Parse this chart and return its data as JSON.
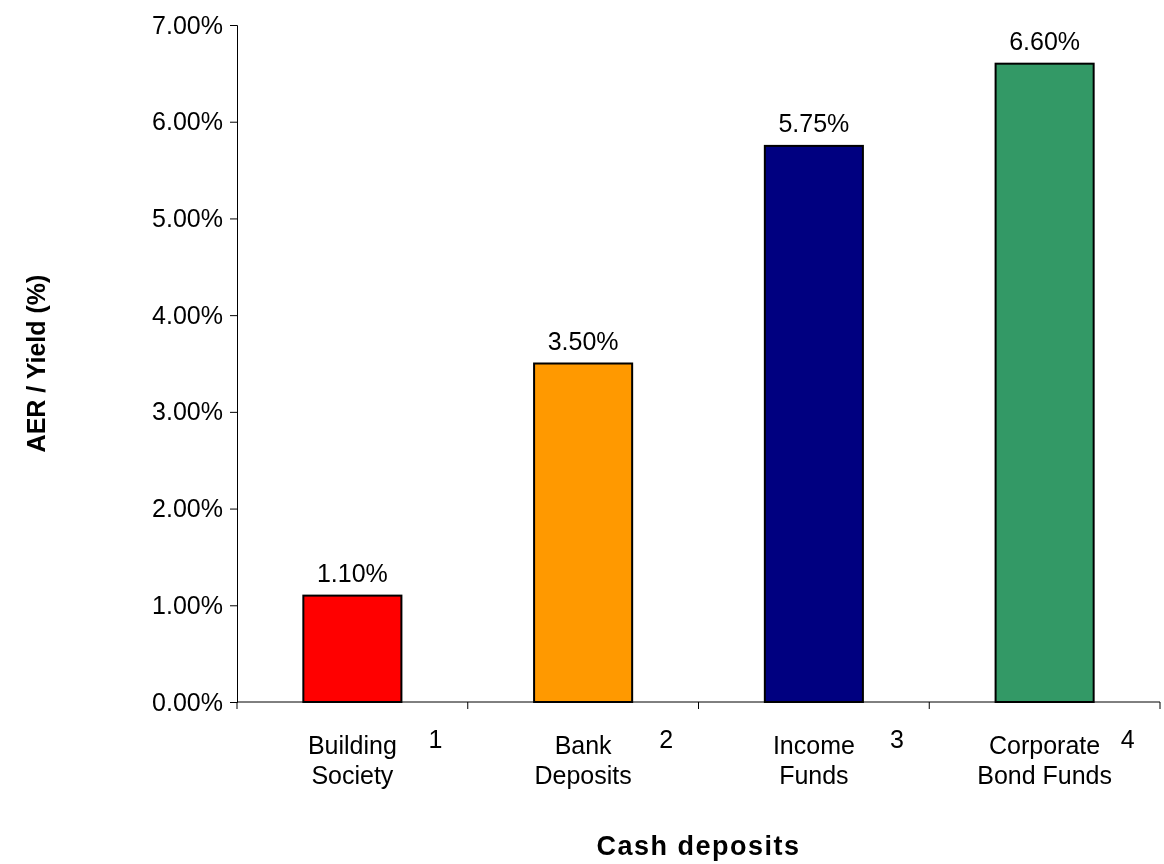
{
  "chart_data": {
    "type": "bar",
    "xlabel": "Cash deposits",
    "ylabel": "AER / Yield (%)",
    "categories": [
      "Building Society",
      "Bank Deposits",
      "Income Funds",
      "Corporate Bond Funds"
    ],
    "annotations": [
      "1",
      "2",
      "3",
      "4"
    ],
    "values": [
      1.1,
      3.5,
      5.75,
      6.6
    ],
    "colors": [
      "#ff0000",
      "#ff9900",
      "#000080",
      "#339966"
    ],
    "value_labels": [
      "1.10%",
      "3.50%",
      "5.75%",
      "6.60%"
    ],
    "ylim": [
      0,
      7
    ],
    "yticks": [
      {
        "value": 0,
        "label": "0.00%"
      },
      {
        "value": 1,
        "label": "1.00%"
      },
      {
        "value": 2,
        "label": "2.00%"
      },
      {
        "value": 3,
        "label": "3.00%"
      },
      {
        "value": 4,
        "label": "4.00%"
      },
      {
        "value": 5,
        "label": "5.00%"
      },
      {
        "value": 6,
        "label": "6.00%"
      },
      {
        "value": 7,
        "label": "7.00%"
      }
    ],
    "grid": false
  }
}
